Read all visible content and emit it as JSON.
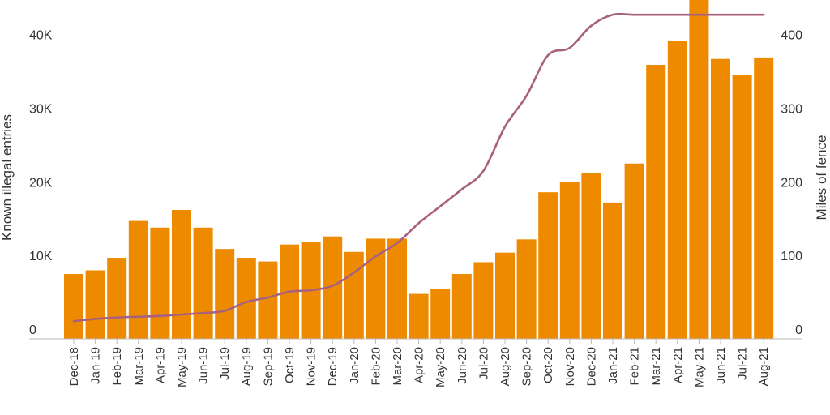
{
  "chart_data": {
    "type": "bar+line",
    "categories": [
      "Dec-18",
      "Jan-19",
      "Feb-19",
      "Mar-19",
      "Apr-19",
      "May-19",
      "Jun-19",
      "Jul-19",
      "Aug-19",
      "Sep-19",
      "Oct-19",
      "Nov-19",
      "Dec-19",
      "Jan-20",
      "Feb-20",
      "Mar-20",
      "Apr-20",
      "May-20",
      "Jun-20",
      "Jul-20",
      "Aug-20",
      "Sep-20",
      "Oct-20",
      "Nov-20",
      "Dec-20",
      "Jan-21",
      "Feb-21",
      "Mar-21",
      "Apr-21",
      "May-21",
      "Jun-21",
      "Jul-21",
      "Aug-21"
    ],
    "series": [
      {
        "name": "Known illegal entries",
        "type": "bar",
        "axis": "left",
        "color": "#EE8A00",
        "values": [
          8800,
          9300,
          11000,
          16000,
          15100,
          17500,
          15100,
          12200,
          11000,
          10500,
          12800,
          13100,
          13900,
          11800,
          13600,
          13600,
          6100,
          6800,
          8800,
          10400,
          11700,
          13500,
          19900,
          21300,
          22500,
          18500,
          23800,
          37200,
          40400,
          47000,
          38000,
          35800,
          38200
        ]
      },
      {
        "name": "Miles of fence",
        "type": "line",
        "axis": "right",
        "color": "#A8607F",
        "values": [
          24,
          27,
          29,
          30,
          31,
          33,
          35,
          38,
          50,
          56,
          64,
          66,
          72,
          90,
          112,
          130,
          157,
          180,
          203,
          228,
          288,
          330,
          385,
          395,
          425,
          440,
          440,
          440,
          440,
          440,
          440,
          440,
          440
        ]
      }
    ],
    "ylabel_left": "Known illegal entries",
    "ylabel_right": "Miles of fence",
    "yticks_left": [
      "0",
      "10K",
      "20K",
      "30K",
      "40K"
    ],
    "yticks_right": [
      "0",
      "100",
      "200",
      "300",
      "400"
    ],
    "ylim_left": [
      0,
      46000
    ],
    "ylim_right": [
      0,
      460
    ],
    "grid": false
  }
}
